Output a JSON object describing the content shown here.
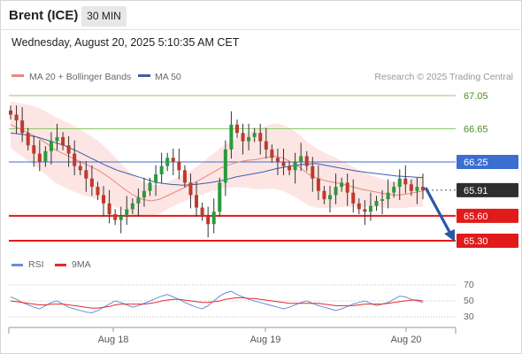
{
  "header": {
    "instrument": "Brent (ICE)",
    "timeframe": "30 MIN",
    "datetime": "Wednesday, August 20, 2025 5:10:35 AM CET"
  },
  "legend": {
    "bb_label": "MA 20 + Bollinger Bands",
    "ma50_label": "MA 50",
    "credit": "Research © 2025 Trading Central"
  },
  "colors": {
    "ma20": "#e58780",
    "bollinger_fill": "#fde0de",
    "ma50": "#3e5fa8",
    "resistance": "#8fc86a",
    "support": "#e11a1a",
    "pivot": "#3a6fd1",
    "last_price_bg": "#2f2f2f",
    "arrow": "#2a57a8",
    "candle_up": "#2b9a3b",
    "candle_down": "#c0392b",
    "rsi": "#6b8fd8",
    "rsi_ma": "#e22b2b"
  },
  "levels": [
    {
      "value": "67.05",
      "kind": "resistance"
    },
    {
      "value": "66.65",
      "kind": "resistance"
    },
    {
      "value": "66.25",
      "kind": "pivot"
    },
    {
      "value": "65.91",
      "kind": "last"
    },
    {
      "value": "65.60",
      "kind": "support"
    },
    {
      "value": "65.30",
      "kind": "support"
    }
  ],
  "rsi": {
    "label": "RSI",
    "ma_label": "9MA",
    "ticks": [
      "70",
      "50",
      "30"
    ]
  },
  "x_axis": {
    "labels": [
      "Aug 18",
      "Aug 19",
      "Aug 20"
    ]
  },
  "chart_data": {
    "type": "candlestick",
    "price_candles_approx": [
      66.82,
      66.75,
      66.6,
      66.45,
      66.35,
      66.25,
      66.38,
      66.5,
      66.55,
      66.45,
      66.35,
      66.2,
      66.15,
      66.05,
      65.95,
      65.85,
      65.75,
      65.62,
      65.55,
      65.6,
      65.68,
      65.75,
      65.82,
      65.9,
      66.0,
      66.1,
      66.2,
      66.3,
      66.25,
      66.15,
      66.0,
      65.85,
      65.7,
      65.6,
      65.5,
      65.65,
      66.0,
      66.4,
      66.7,
      66.6,
      66.5,
      66.55,
      66.6,
      66.5,
      66.4,
      66.3,
      66.25,
      66.2,
      66.15,
      66.25,
      66.32,
      66.2,
      66.05,
      65.9,
      65.8,
      65.85,
      65.95,
      66.0,
      65.88,
      65.75,
      65.68,
      65.65,
      65.72,
      65.78,
      65.8,
      65.88,
      65.95,
      66.05,
      65.98,
      65.9,
      65.95,
      65.91
    ],
    "ma20_approx": [
      66.7,
      66.65,
      66.6,
      66.55,
      66.48,
      66.4,
      66.35,
      66.3,
      66.25,
      66.2,
      66.15,
      66.08,
      66.0,
      65.92,
      65.85,
      65.8,
      65.78,
      65.8,
      65.85,
      65.9,
      65.95,
      66.0,
      66.06,
      66.12,
      66.18,
      66.22,
      66.25,
      66.27,
      66.28,
      66.3,
      66.32,
      66.3,
      66.25,
      66.18,
      66.1,
      66.05,
      66.02,
      66.0,
      65.98,
      65.95,
      65.92,
      65.9,
      65.88,
      65.86,
      65.85,
      65.86,
      65.88,
      65.9
    ],
    "ma50_approx": [
      66.6,
      66.58,
      66.55,
      66.5,
      66.45,
      66.38,
      66.3,
      66.22,
      66.15,
      66.1,
      66.05,
      66.0,
      65.98,
      65.97,
      65.98,
      66.0,
      66.03,
      66.07,
      66.1,
      66.13,
      66.17,
      66.2,
      66.22,
      66.23,
      66.2,
      66.17,
      66.14,
      66.12,
      66.1,
      66.08,
      66.07,
      66.06
    ],
    "rsi_approx": [
      55,
      52,
      48,
      45,
      42,
      40,
      44,
      48,
      50,
      46,
      42,
      40,
      38,
      36,
      35,
      38,
      42,
      46,
      50,
      48,
      45,
      42,
      44,
      47,
      50,
      53,
      56,
      58,
      55,
      52,
      48,
      45,
      42,
      40,
      44,
      50,
      56,
      60,
      62,
      58,
      55,
      52,
      50,
      48,
      46,
      44,
      42,
      40,
      42,
      45,
      48,
      50,
      47,
      44,
      42,
      40,
      38,
      40,
      43,
      46,
      48,
      50,
      47,
      44,
      46,
      48,
      52,
      56,
      55,
      52,
      50,
      48
    ],
    "rsi_ma_approx": [
      50,
      49,
      48,
      47,
      46,
      45,
      45,
      46,
      46,
      46,
      45,
      44,
      43,
      42,
      41,
      41,
      42,
      43,
      45,
      46,
      46,
      46,
      46,
      46,
      47,
      48,
      50,
      51,
      52,
      52,
      51,
      50,
      49,
      48,
      48,
      49,
      50,
      52,
      53,
      54,
      54,
      53,
      53,
      52,
      51,
      50,
      49,
      48,
      47,
      47,
      47,
      47,
      47,
      47,
      46,
      45,
      44,
      44,
      44,
      44,
      45,
      46,
      46,
      46,
      46,
      47,
      48,
      49,
      50,
      51,
      51,
      50
    ]
  }
}
